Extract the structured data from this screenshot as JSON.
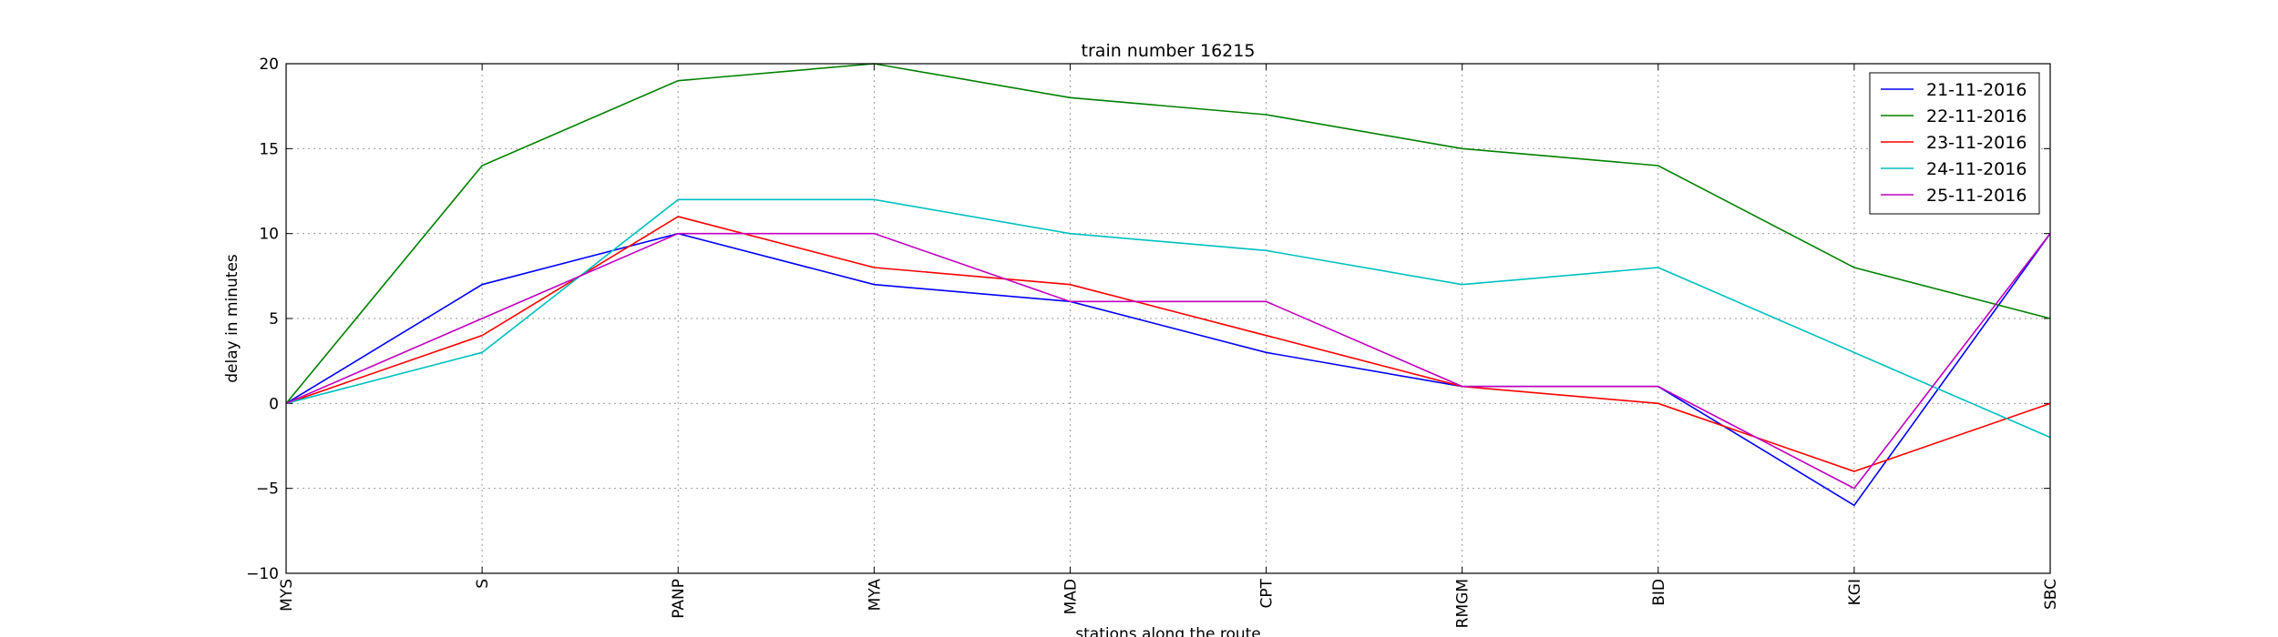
{
  "chart_data": {
    "type": "line",
    "title": "train number 16215",
    "x_label": "stations along the route",
    "y_label": "delay in minutes",
    "categories": [
      "MYS",
      "S",
      "PANP",
      "MYA",
      "MAD",
      "CPT",
      "RMGM",
      "BID",
      "KGI",
      "SBC"
    ],
    "series": [
      {
        "name": "21-11-2016",
        "color": "#0000ff",
        "values": [
          0,
          7,
          10,
          7,
          6,
          3,
          1,
          1,
          -6,
          10
        ]
      },
      {
        "name": "22-11-2016",
        "color": "#008000",
        "values": [
          0,
          14,
          19,
          20,
          18,
          17,
          15,
          14,
          8,
          5
        ]
      },
      {
        "name": "23-11-2016",
        "color": "#ff0000",
        "values": [
          0,
          4,
          11,
          8,
          7,
          4,
          1,
          0,
          -4,
          0
        ]
      },
      {
        "name": "24-11-2016",
        "color": "#00bfbf",
        "values": [
          0,
          3,
          12,
          12,
          10,
          9,
          7,
          8,
          3,
          -2
        ]
      },
      {
        "name": "25-11-2016",
        "color": "#bf00bf",
        "values": [
          0,
          5,
          10,
          10,
          6,
          6,
          1,
          1,
          -5,
          10
        ]
      }
    ],
    "ylim": [
      -10,
      20
    ],
    "yticks": [
      {
        "value": -10,
        "label": "−10"
      },
      {
        "value": -5,
        "label": "−5"
      },
      0,
      5,
      10,
      15,
      20
    ],
    "grid": true,
    "legend": "upper right"
  }
}
